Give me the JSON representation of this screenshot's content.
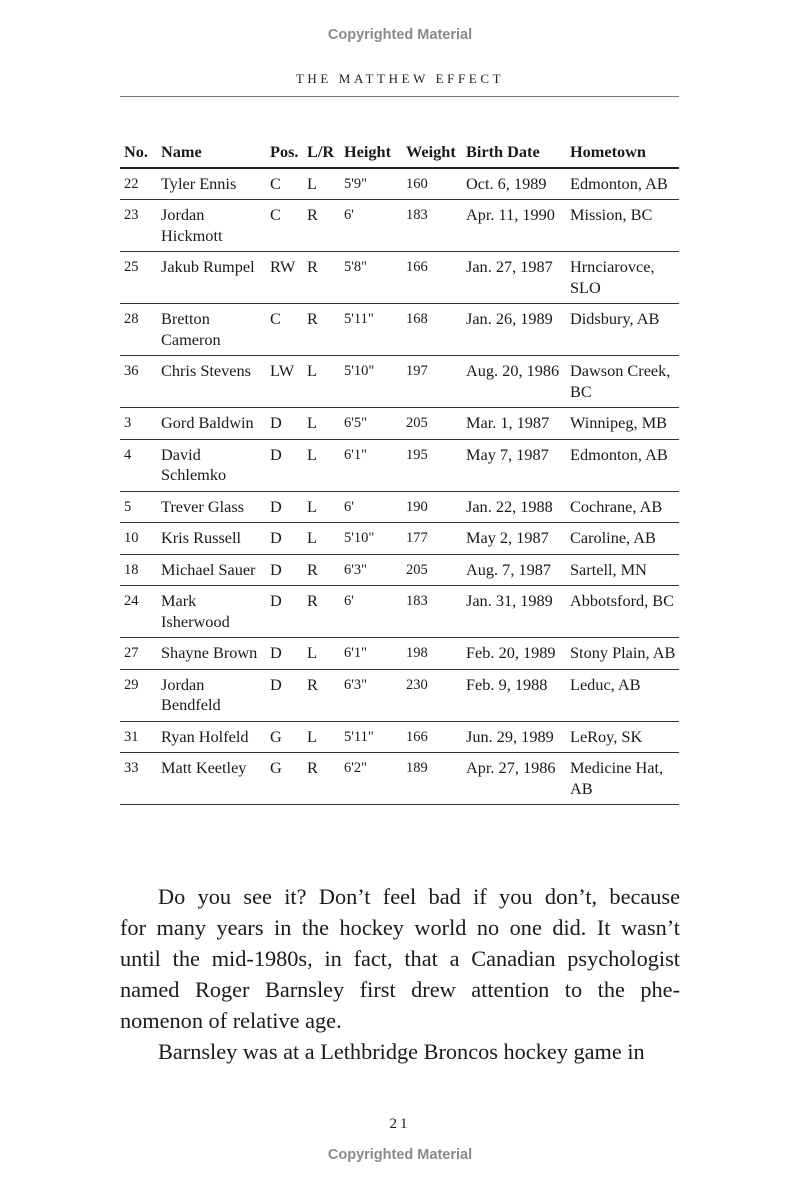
{
  "watermark_top": "Copyrighted Material",
  "running_head": "THE MATTHEW EFFECT",
  "table": {
    "headers": [
      "No.",
      "Name",
      "Pos.",
      "L/R",
      "Height",
      "Weight",
      "Birth Date",
      "Hometown"
    ],
    "rows": [
      [
        "22",
        "Tyler Ennis",
        "C",
        "L",
        "5'9\"",
        "160",
        "Oct. 6, 1989",
        "Edmonton, AB"
      ],
      [
        "23",
        "Jordan Hickmott",
        "C",
        "R",
        "6'",
        "183",
        "Apr. 11, 1990",
        "Mission, BC"
      ],
      [
        "25",
        "Jakub Rumpel",
        "RW",
        "R",
        "5'8\"",
        "166",
        "Jan. 27, 1987",
        "Hrnciarovce, SLO"
      ],
      [
        "28",
        "Bretton Cameron",
        "C",
        "R",
        "5'11\"",
        "168",
        "Jan. 26, 1989",
        "Didsbury, AB"
      ],
      [
        "36",
        "Chris Stevens",
        "LW",
        "L",
        "5'10\"",
        "197",
        "Aug. 20, 1986",
        "Dawson Creek, BC"
      ],
      [
        "3",
        "Gord Baldwin",
        "D",
        "L",
        "6'5\"",
        "205",
        "Mar. 1, 1987",
        "Winnipeg, MB"
      ],
      [
        "4",
        "David Schlemko",
        "D",
        "L",
        "6'1\"",
        "195",
        "May 7, 1987",
        "Edmonton, AB"
      ],
      [
        "5",
        "Trever Glass",
        "D",
        "L",
        "6'",
        "190",
        "Jan. 22, 1988",
        "Cochrane, AB"
      ],
      [
        "10",
        "Kris Russell",
        "D",
        "L",
        "5'10\"",
        "177",
        "May 2, 1987",
        "Caroline, AB"
      ],
      [
        "18",
        "Michael Sauer",
        "D",
        "R",
        "6'3\"",
        "205",
        "Aug. 7, 1987",
        "Sartell, MN"
      ],
      [
        "24",
        "Mark Isherwood",
        "D",
        "R",
        "6'",
        "183",
        "Jan. 31, 1989",
        "Abbotsford, BC"
      ],
      [
        "27",
        "Shayne Brown",
        "D",
        "L",
        "6'1\"",
        "198",
        "Feb. 20, 1989",
        "Stony Plain, AB"
      ],
      [
        "29",
        "Jordan Bendfeld",
        "D",
        "R",
        "6'3\"",
        "230",
        "Feb. 9, 1988",
        "Leduc, AB"
      ],
      [
        "31",
        "Ryan Holfeld",
        "G",
        "L",
        "5'11\"",
        "166",
        "Jun. 29, 1989",
        "LeRoy, SK"
      ],
      [
        "33",
        "Matt Keetley",
        "G",
        "R",
        "6'2\"",
        "189",
        "Apr. 27, 1986",
        "Medicine Hat, AB"
      ]
    ]
  },
  "body_lines": [
    "Do you see it? Don’t feel bad if you don’t, because",
    "for many years in the hockey world no one did. It wasn’t",
    "until the mid-1980s, in fact, that a Canadian psychologist",
    "named Roger Barnsley first drew attention to the phe-",
    "nomenon of relative age.",
    "Barnsley was at a Lethbridge Broncos hockey game in"
  ],
  "page_number": "21",
  "watermark_bottom": "Copyrighted Material"
}
